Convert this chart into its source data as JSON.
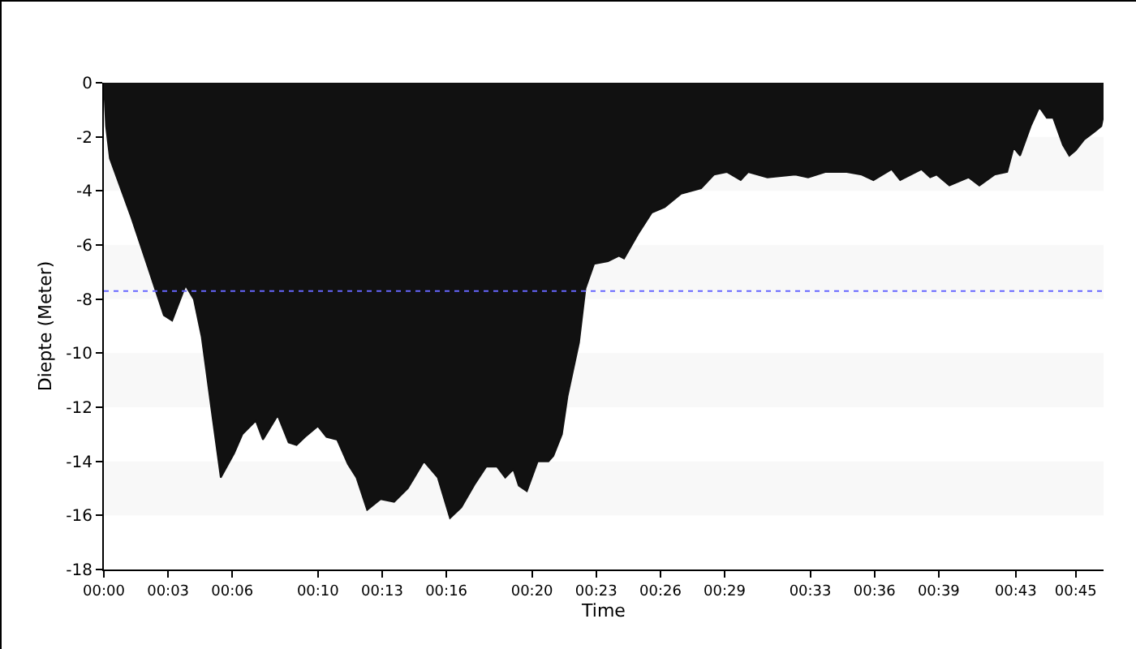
{
  "chart_data": {
    "type": "area",
    "xlabel": "Time",
    "ylabel": "Diepte (Meter)",
    "x": [
      0,
      0.1,
      0.28,
      1.29,
      2.05,
      2.8,
      3.19,
      3.82,
      4.2,
      4.57,
      5.08,
      5.46,
      6.09,
      6.47,
      7.1,
      7.43,
      8.12,
      8.63,
      9.0,
      9.39,
      10.0,
      10.4,
      10.9,
      11.4,
      11.8,
      12.3,
      12.93,
      13.56,
      14.2,
      14.95,
      15.6,
      16.17,
      16.7,
      17.36,
      17.86,
      18.37,
      18.75,
      19.13,
      19.38,
      19.76,
      20.27,
      20.77,
      21.0,
      21.4,
      21.66,
      22.2,
      22.5,
      22.9,
      23.55,
      24.06,
      24.3,
      24.95,
      25.6,
      26.2,
      26.97,
      27.9,
      28.5,
      29.1,
      29.75,
      30.1,
      31.0,
      32.3,
      32.9,
      33.7,
      34.7,
      35.4,
      35.95,
      36.8,
      37.2,
      38.2,
      38.6,
      38.9,
      39.5,
      40.4,
      40.9,
      41.6,
      42.2,
      42.5,
      42.8,
      43.3,
      43.7,
      44.05,
      44.35,
      44.8,
      45.1,
      45.4,
      45.8,
      46.3,
      46.6,
      46.7
    ],
    "series": [
      {
        "color": "#111111",
        "values": [
          0,
          -1.6,
          -2.8,
          -5.0,
          -6.8,
          -8.6,
          -8.8,
          -7.5,
          -8.0,
          -9.4,
          -12.4,
          -14.6,
          -13.7,
          -13.0,
          -12.5,
          -13.2,
          -12.3,
          -13.3,
          -13.4,
          -13.1,
          -12.7,
          -13.1,
          -13.2,
          -14.1,
          -14.6,
          -15.8,
          -15.4,
          -15.5,
          -15.0,
          -14.0,
          -14.6,
          -16.1,
          -15.7,
          -14.8,
          -14.2,
          -14.2,
          -14.6,
          -14.3,
          -14.9,
          -15.1,
          -14.0,
          -14.0,
          -13.8,
          -13.0,
          -11.6,
          -9.6,
          -7.6,
          -6.7,
          -6.6,
          -6.4,
          -6.5,
          -5.6,
          -4.8,
          -4.6,
          -4.1,
          -3.9,
          -3.4,
          -3.3,
          -3.6,
          -3.3,
          -3.5,
          -3.4,
          -3.5,
          -3.3,
          -3.3,
          -3.4,
          -3.6,
          -3.2,
          -3.6,
          -3.2,
          -3.5,
          -3.4,
          -3.8,
          -3.5,
          -3.8,
          -3.4,
          -3.3,
          -2.4,
          -2.7,
          -1.6,
          -0.9,
          -1.3,
          -1.3,
          -2.3,
          -2.7,
          -2.5,
          -2.1,
          -1.8,
          -1.6,
          -1.2
        ]
      }
    ],
    "xlim": [
      0,
      46.7
    ],
    "xticks": [
      {
        "value": 0,
        "label": "00:00"
      },
      {
        "value": 3,
        "label": "00:03"
      },
      {
        "value": 6,
        "label": "00:06"
      },
      {
        "value": 10,
        "label": "00:10"
      },
      {
        "value": 13,
        "label": "00:13"
      },
      {
        "value": 16,
        "label": "00:16"
      },
      {
        "value": 20,
        "label": "00:20"
      },
      {
        "value": 23,
        "label": "00:23"
      },
      {
        "value": 26,
        "label": "00:26"
      },
      {
        "value": 29,
        "label": "00:29"
      },
      {
        "value": 33,
        "label": "00:33"
      },
      {
        "value": 36,
        "label": "00:36"
      },
      {
        "value": 39,
        "label": "00:39"
      },
      {
        "value": 42.6,
        "label": "00:43"
      },
      {
        "value": 45.4,
        "label": "00:45"
      }
    ],
    "ylim": [
      -18,
      0
    ],
    "yticks": [
      0,
      -2,
      -4,
      -6,
      -8,
      -10,
      -12,
      -14,
      -16,
      -18
    ],
    "ref_lines": [
      {
        "axis": "y",
        "value": -7.7,
        "color": "#6666ff",
        "line_style": "dotted"
      }
    ],
    "bands": [
      {
        "axis": "y",
        "from": -4,
        "to": -2,
        "color": "#f8f8f8"
      },
      {
        "axis": "y",
        "from": -8,
        "to": -6,
        "color": "#f8f8f8"
      },
      {
        "axis": "y",
        "from": -12,
        "to": -10,
        "color": "#f8f8f8"
      },
      {
        "axis": "y",
        "from": -16,
        "to": -14,
        "color": "#f8f8f8"
      }
    ],
    "grid": false,
    "marker": "none",
    "line_style": "solid"
  }
}
